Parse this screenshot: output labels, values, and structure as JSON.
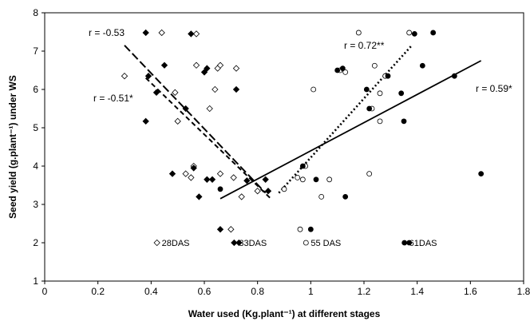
{
  "chart_data": {
    "type": "scatter",
    "xlabel": "Water used (Kg.plant⁻¹) at different stages",
    "ylabel": "Seed yield (g.plant⁻¹) under WS",
    "xlim": [
      0,
      1.8
    ],
    "ylim": [
      1,
      8
    ],
    "x_ticks": [
      "0",
      "0.2",
      "0.4",
      "0.6",
      "0.8",
      "1",
      "1.2",
      "1.4",
      "1.6",
      "1.8"
    ],
    "y_ticks": [
      "1",
      "2",
      "3",
      "4",
      "5",
      "6",
      "7",
      "8"
    ],
    "grid": false,
    "legend_position": "bottom-center",
    "series": [
      {
        "name": "28DAS",
        "marker": "diamond-open",
        "color": "#000000",
        "points": [
          [
            0.3,
            6.35
          ],
          [
            0.44,
            7.48
          ],
          [
            0.49,
            5.92
          ],
          [
            0.5,
            5.17
          ],
          [
            0.53,
            3.8
          ],
          [
            0.55,
            3.7
          ],
          [
            0.56,
            4.0
          ],
          [
            0.57,
            6.63
          ],
          [
            0.57,
            7.45
          ],
          [
            0.62,
            5.5
          ],
          [
            0.64,
            6.0
          ],
          [
            0.65,
            6.55
          ],
          [
            0.66,
            3.8
          ],
          [
            0.66,
            6.63
          ],
          [
            0.71,
            3.7
          ],
          [
            0.72,
            6.55
          ],
          [
            0.7,
            2.35
          ],
          [
            0.74,
            3.2
          ],
          [
            0.8,
            3.35
          ]
        ],
        "trendline": {
          "style": "short-dash",
          "x": [
            0.38,
            0.85
          ],
          "y": [
            6.3,
            3.15
          ]
        },
        "trend_label": "r = -0.51*"
      },
      {
        "name": "33DAS",
        "marker": "diamond-filled",
        "color": "#000000",
        "points": [
          [
            0.38,
            7.48
          ],
          [
            0.38,
            5.17
          ],
          [
            0.39,
            6.35
          ],
          [
            0.42,
            5.92
          ],
          [
            0.45,
            6.63
          ],
          [
            0.48,
            3.8
          ],
          [
            0.53,
            5.5
          ],
          [
            0.55,
            7.45
          ],
          [
            0.56,
            3.95
          ],
          [
            0.58,
            3.2
          ],
          [
            0.6,
            6.45
          ],
          [
            0.61,
            6.55
          ],
          [
            0.61,
            3.65
          ],
          [
            0.63,
            3.65
          ],
          [
            0.66,
            2.35
          ],
          [
            0.72,
            6.0
          ],
          [
            0.73,
            2.0
          ],
          [
            0.76,
            3.62
          ],
          [
            0.83,
            3.65
          ],
          [
            0.84,
            3.35
          ]
        ],
        "trendline": {
          "style": "long-dash",
          "x": [
            0.3,
            0.83
          ],
          "y": [
            7.15,
            3.3
          ]
        },
        "trend_label": "r = -0.53"
      },
      {
        "name": "55 DAS",
        "marker": "circle-open",
        "color": "#000000",
        "points": [
          [
            0.9,
            3.4
          ],
          [
            0.95,
            3.7
          ],
          [
            0.96,
            2.35
          ],
          [
            0.97,
            3.65
          ],
          [
            0.98,
            4.0
          ],
          [
            1.01,
            6.0
          ],
          [
            1.04,
            3.2
          ],
          [
            1.07,
            3.65
          ],
          [
            1.11,
            6.5
          ],
          [
            1.13,
            6.45
          ],
          [
            1.18,
            7.48
          ],
          [
            1.22,
            3.8
          ],
          [
            1.23,
            5.5
          ],
          [
            1.24,
            6.62
          ],
          [
            1.26,
            5.9
          ],
          [
            1.26,
            5.17
          ],
          [
            1.28,
            6.35
          ],
          [
            1.37,
            7.48
          ]
        ],
        "trendline": {
          "style": "dotted",
          "x": [
            0.88,
            1.38
          ],
          "y": [
            3.3,
            7.15
          ]
        },
        "trend_label": "r = 0.72**"
      },
      {
        "name": "61DAS",
        "marker": "circle-filled",
        "color": "#000000",
        "points": [
          [
            0.66,
            3.4
          ],
          [
            0.97,
            4.0
          ],
          [
            1.0,
            2.35
          ],
          [
            1.02,
            3.65
          ],
          [
            1.1,
            6.5
          ],
          [
            1.12,
            6.55
          ],
          [
            1.13,
            3.2
          ],
          [
            1.21,
            6.0
          ],
          [
            1.22,
            5.5
          ],
          [
            1.29,
            6.35
          ],
          [
            1.34,
            5.9
          ],
          [
            1.35,
            5.17
          ],
          [
            1.37,
            2.0
          ],
          [
            1.39,
            7.45
          ],
          [
            1.42,
            6.62
          ],
          [
            1.46,
            7.48
          ],
          [
            1.54,
            6.35
          ],
          [
            1.64,
            3.8
          ]
        ],
        "trendline": {
          "style": "solid",
          "x": [
            0.66,
            1.64
          ],
          "y": [
            3.15,
            6.75
          ]
        },
        "trend_label": "r = 0.59*"
      }
    ]
  }
}
